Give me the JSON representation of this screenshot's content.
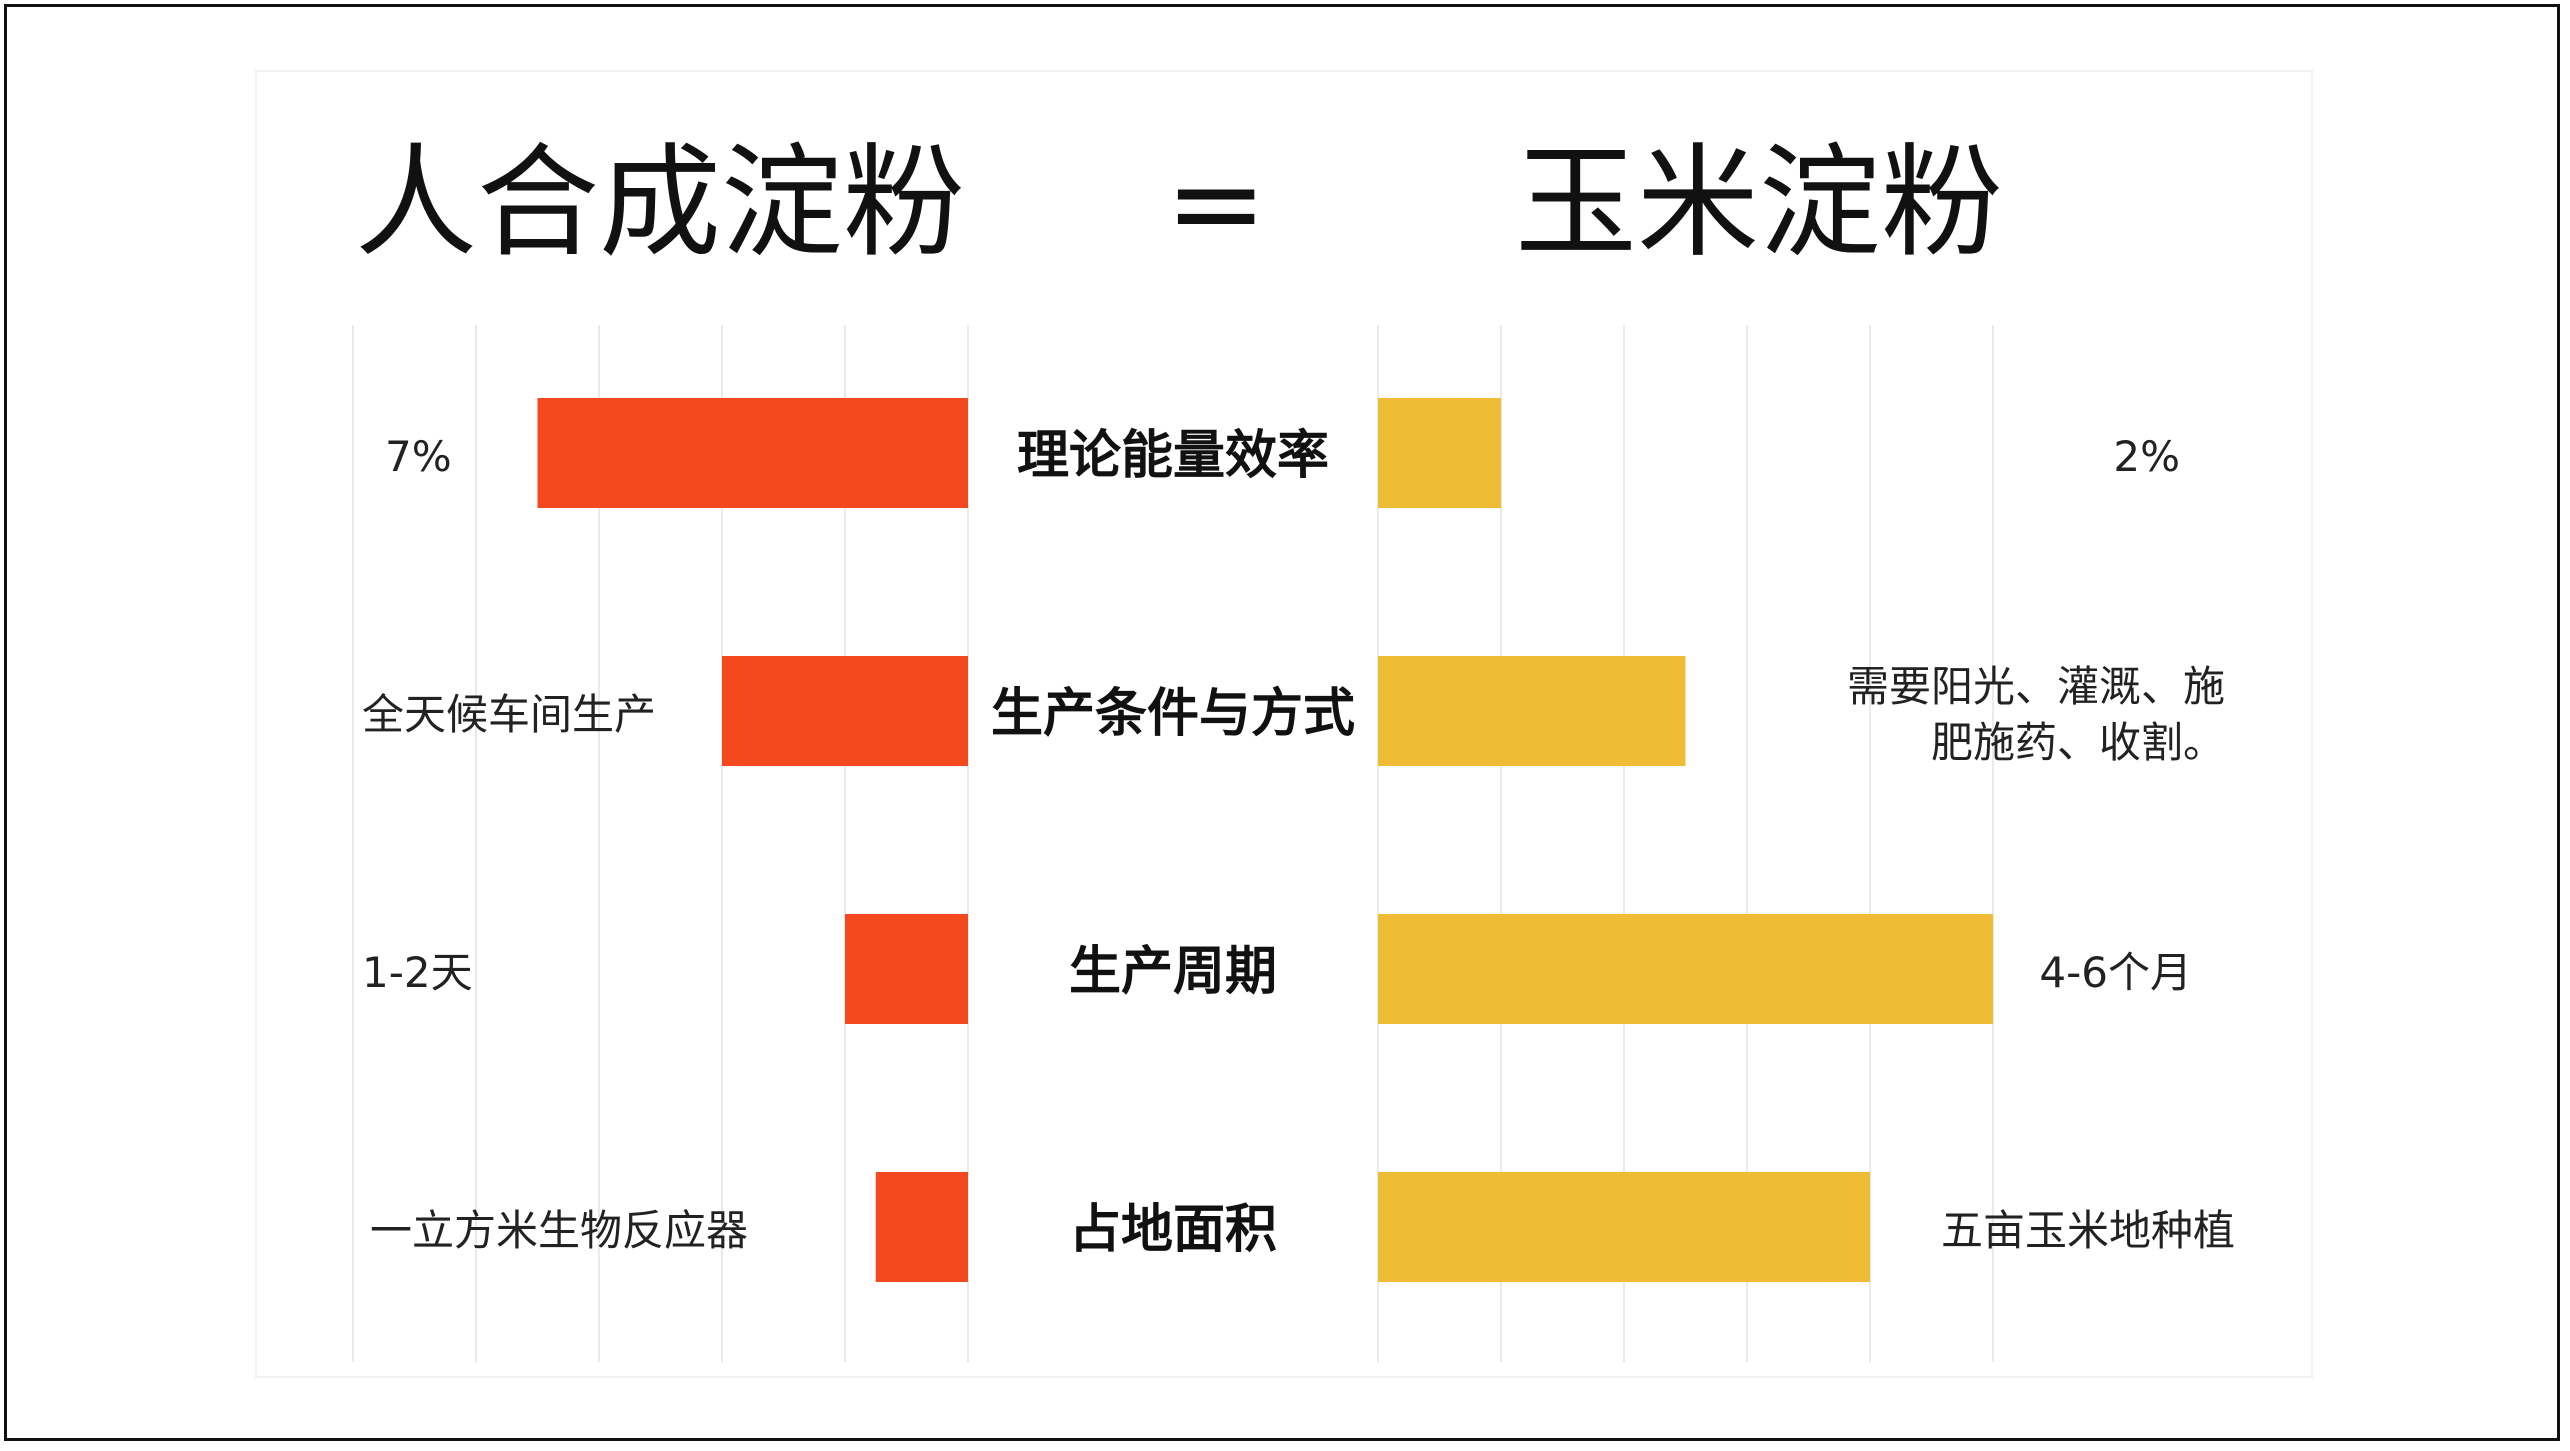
{
  "header": {
    "left_title": "人合成淀粉",
    "equals": "=",
    "right_title": "玉米淀粉"
  },
  "colors": {
    "left_bar": "#F4491F",
    "right_bar": "#EFBC36",
    "grid": "#EAEAEA",
    "text": "#111111"
  },
  "chart_data": {
    "type": "bar",
    "orientation": "horizontal",
    "layout": "back-to-back",
    "grid": true,
    "title": "",
    "xlabel": "",
    "ylabel": "",
    "xlim": [
      0,
      5
    ],
    "categories": [
      "理论能量效率",
      "生产条件与方式",
      "生产周期",
      "占地面积"
    ],
    "series": [
      {
        "name": "人合成淀粉",
        "side": "left",
        "values": [
          3.5,
          2.0,
          1.0,
          0.75
        ],
        "labels": [
          [
            "7%"
          ],
          [
            "全天候车间生产"
          ],
          [
            "1-2天"
          ],
          [
            "一立方米生物反应器"
          ]
        ]
      },
      {
        "name": "玉米淀粉",
        "side": "right",
        "values": [
          1.0,
          2.5,
          5.0,
          4.0
        ],
        "labels": [
          [
            "2%"
          ],
          [
            "需要阳光、灌溉、施",
            "肥施药、收割。"
          ],
          [
            "4-6个月"
          ],
          [
            "五亩玉米地种植"
          ]
        ]
      }
    ]
  }
}
